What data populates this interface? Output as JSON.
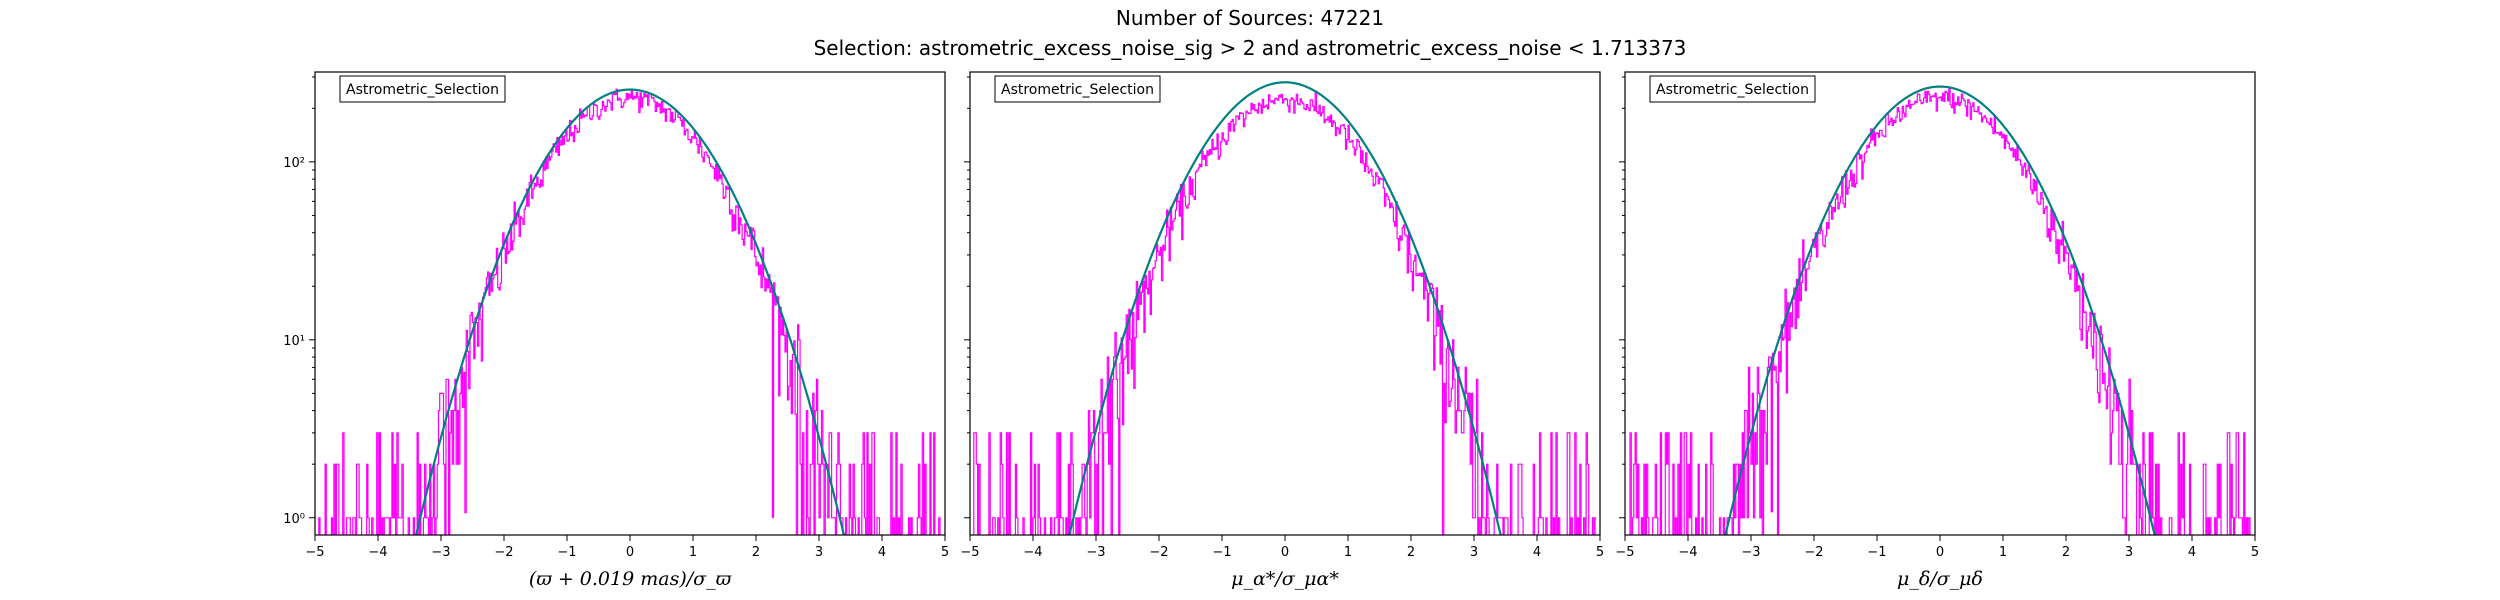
{
  "figure": {
    "title": "Number of Sources: 47221",
    "subtitle": "Selection: astrometric_excess_noise_sig > 2 and astrometric_excess_noise < 1.713373"
  },
  "colors": {
    "histogram": "#ff00ff",
    "fit": "#008080",
    "fit_end": "#1f77b4",
    "axes": "#000000"
  },
  "chart_data": [
    {
      "type": "line",
      "legend": "Astrometric_Selection",
      "legend_placement": "top-left",
      "xlabel": "(ϖ + 0.019 mas)/σ_ϖ",
      "xlim": [
        -5,
        5
      ],
      "ylim": [
        0.8,
        320
      ],
      "yscale": "log",
      "grid": false,
      "x_ticks": [
        "−5",
        "−4",
        "−3",
        "−2",
        "−1",
        "0",
        "1",
        "2",
        "3",
        "4",
        "5"
      ],
      "y_ticks": [
        "10⁰",
        "10¹",
        "10²"
      ],
      "fit_peak": 255,
      "hist_peak": 230,
      "fit_range": [
        -3.6,
        3.5
      ],
      "hist_range": [
        -4.95,
        4.95
      ]
    },
    {
      "type": "line",
      "legend": "Astrometric_Selection",
      "legend_placement": "top-left",
      "xlabel": "μ_α*/σ_μα*",
      "xlim": [
        -5,
        5
      ],
      "ylim": [
        0.8,
        320
      ],
      "yscale": "log",
      "grid": false,
      "x_ticks": [
        "−5",
        "−4",
        "−3",
        "−2",
        "−1",
        "0",
        "1",
        "2",
        "3",
        "4",
        "5"
      ],
      "y_ticks": [],
      "fit_peak": 280,
      "hist_peak": 225,
      "fit_range": [
        -3.8,
        3.8
      ],
      "hist_range": [
        -4.95,
        4.95
      ]
    },
    {
      "type": "line",
      "legend": "Astrometric_Selection",
      "legend_placement": "top-left",
      "xlabel": "μ_δ/σ_μδ",
      "xlim": [
        -5,
        5
      ],
      "ylim": [
        0.8,
        320
      ],
      "yscale": "log",
      "grid": false,
      "x_ticks": [
        "−5",
        "−4",
        "−3",
        "−2",
        "−1",
        "0",
        "1",
        "2",
        "3",
        "4",
        "5"
      ],
      "y_ticks": [],
      "fit_peak": 265,
      "hist_peak": 228,
      "fit_range": [
        -3.9,
        3.85
      ],
      "hist_range": [
        -4.95,
        4.95
      ]
    }
  ]
}
